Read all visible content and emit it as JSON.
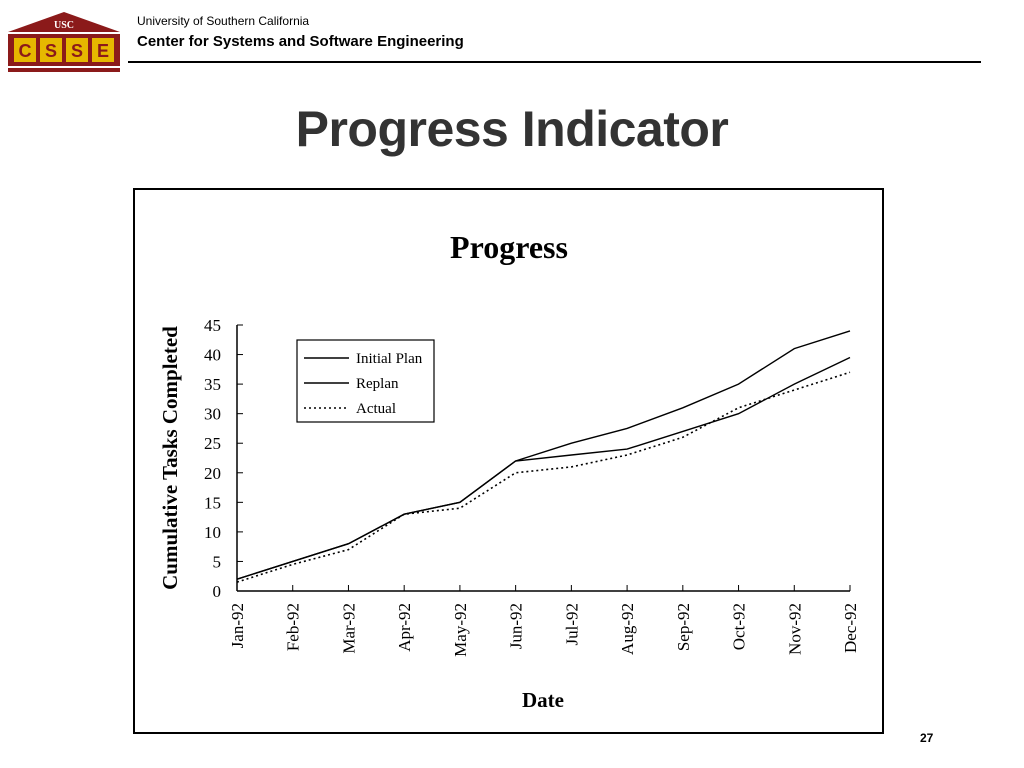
{
  "header": {
    "logo_text": "USC",
    "logo_letters": [
      "C",
      "S",
      "S",
      "E"
    ],
    "university": "University of Southern California",
    "center": "Center for Systems and Software Engineering"
  },
  "slide": {
    "title": "Progress Indicator",
    "page_number": "27"
  },
  "colors": {
    "logo_red": "#8b1a1a",
    "logo_gold": "#e6b800",
    "title_text": "#333333"
  },
  "chart_data": {
    "type": "line",
    "title": "Progress",
    "xlabel": "Date",
    "ylabel": "Cumulative Tasks Completed",
    "categories": [
      "Jan-92",
      "Feb-92",
      "Mar-92",
      "Apr-92",
      "May-92",
      "Jun-92",
      "Jul-92",
      "Aug-92",
      "Sep-92",
      "Oct-92",
      "Nov-92",
      "Dec-92"
    ],
    "y_ticks": [
      0,
      5,
      10,
      15,
      20,
      25,
      30,
      35,
      40,
      45
    ],
    "ylim": [
      0,
      45
    ],
    "grid": false,
    "legend_position": "top-left",
    "series": [
      {
        "name": "Initial Plan",
        "style": "solid",
        "values": [
          2,
          5,
          8,
          13,
          15,
          22,
          25,
          27.5,
          31,
          35,
          41,
          44
        ]
      },
      {
        "name": "Replan",
        "style": "solid",
        "values": [
          2,
          5,
          8,
          13,
          15,
          22,
          23,
          24,
          27,
          30,
          35,
          39.5
        ]
      },
      {
        "name": "Actual",
        "style": "dotted",
        "values": [
          1.5,
          4.5,
          7,
          13,
          14,
          20,
          21,
          23,
          26,
          31,
          34,
          37
        ]
      }
    ]
  }
}
